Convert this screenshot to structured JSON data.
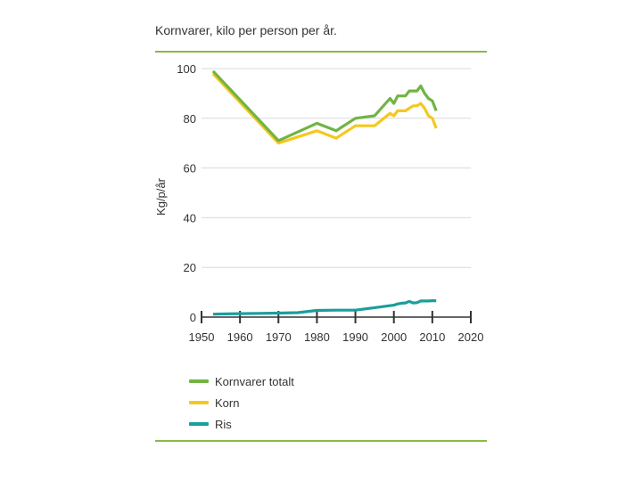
{
  "colors": {
    "rule": "#8bb84a",
    "grid": "#d9d9d9",
    "axis": "#333333",
    "kornvarer_totalt": "#72b443",
    "korn": "#f5c81e",
    "ris": "#1a9e9c"
  },
  "chart_data": {
    "type": "line",
    "title": "Kornvarer, kilo per person per år.",
    "ylabel": "Kg/p/år",
    "xlabel": "",
    "xlim": [
      1950,
      2020
    ],
    "ylim": [
      0,
      100
    ],
    "xticks": [
      1950,
      1960,
      1970,
      1980,
      1990,
      2000,
      2010,
      2020
    ],
    "yticks": [
      0,
      20,
      40,
      60,
      80,
      100
    ],
    "grid": true,
    "legend_position": "bottom",
    "series": [
      {
        "name": "Kornvarer totalt",
        "color_key": "kornvarer_totalt",
        "x": [
          1953,
          1970,
          1980,
          1985,
          1990,
          1995,
          1999,
          2000,
          2001,
          2002,
          2003,
          2004,
          2005,
          2006,
          2007,
          2008,
          2009,
          2010,
          2011
        ],
        "y": [
          99,
          71,
          78,
          75,
          80,
          81,
          88,
          86,
          89,
          89,
          89,
          91,
          91,
          91,
          93,
          90,
          88,
          87,
          83
        ]
      },
      {
        "name": "Korn",
        "color_key": "korn",
        "x": [
          1953,
          1970,
          1980,
          1985,
          1990,
          1995,
          1999,
          2000,
          2001,
          2002,
          2003,
          2004,
          2005,
          2006,
          2007,
          2008,
          2009,
          2010,
          2011
        ],
        "y": [
          98,
          70,
          75,
          72,
          77,
          77,
          82,
          81,
          83,
          83,
          83,
          84,
          85,
          85,
          86,
          84,
          81,
          80,
          76
        ]
      },
      {
        "name": "Ris",
        "color_key": "ris",
        "x": [
          1953,
          1960,
          1965,
          1970,
          1975,
          1980,
          1985,
          1990,
          1995,
          2000,
          2001,
          2002,
          2003,
          2004,
          2005,
          2006,
          2007,
          2008,
          2009,
          2010,
          2011
        ],
        "y": [
          1.2,
          1.4,
          1.5,
          1.6,
          1.8,
          2.7,
          2.8,
          2.8,
          3.8,
          4.8,
          5.3,
          5.6,
          5.7,
          6.3,
          5.7,
          5.8,
          6.5,
          6.5,
          6.5,
          6.6,
          6.6
        ]
      }
    ]
  }
}
